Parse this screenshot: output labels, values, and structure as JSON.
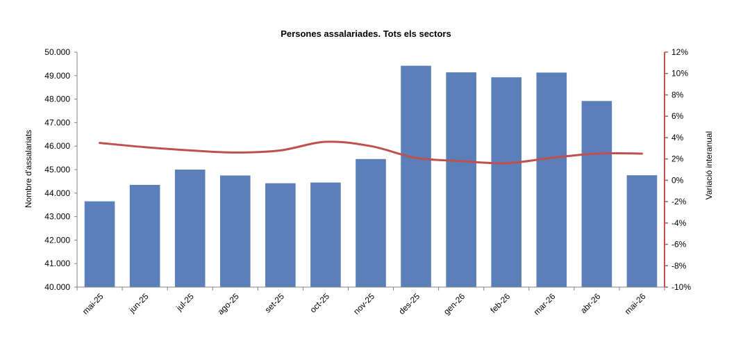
{
  "chart_data": {
    "type": "bar",
    "title": "Persones assalariades. Tots els sectors",
    "ylabel": "Nombre d'assalariats",
    "y2label": "Variació interanual",
    "categories": [
      "mai-25",
      "jun-25",
      "jul-25",
      "ago-25",
      "set-25",
      "oct-25",
      "nov-25",
      "des-25",
      "gen-26",
      "feb-26",
      "mar-26",
      "abr-26",
      "mai-26"
    ],
    "ylim": [
      40000,
      50000
    ],
    "y2lim": [
      -10,
      12
    ],
    "yticks": [
      "40.000",
      "41.000",
      "42.000",
      "43.000",
      "44.000",
      "45.000",
      "46.000",
      "47.000",
      "48.000",
      "49.000",
      "50.000"
    ],
    "y2ticks": [
      "-10%",
      "-8%",
      "-6%",
      "-4%",
      "-2%",
      "0%",
      "2%",
      "4%",
      "6%",
      "8%",
      "10%",
      "12%"
    ],
    "grid": false,
    "legend": "none",
    "series": [
      {
        "type": "bar",
        "axis": "left",
        "color": "#5b7fb8",
        "values": [
          43650,
          44350,
          45000,
          44750,
          44420,
          44450,
          45450,
          49420,
          49140,
          48930,
          49130,
          47920,
          44760
        ]
      },
      {
        "type": "line",
        "axis": "right",
        "color": "#c0504d",
        "values": [
          3.5,
          3.1,
          2.8,
          2.6,
          2.8,
          3.6,
          3.2,
          2.1,
          1.8,
          1.6,
          2.1,
          2.5,
          2.5
        ]
      }
    ]
  }
}
